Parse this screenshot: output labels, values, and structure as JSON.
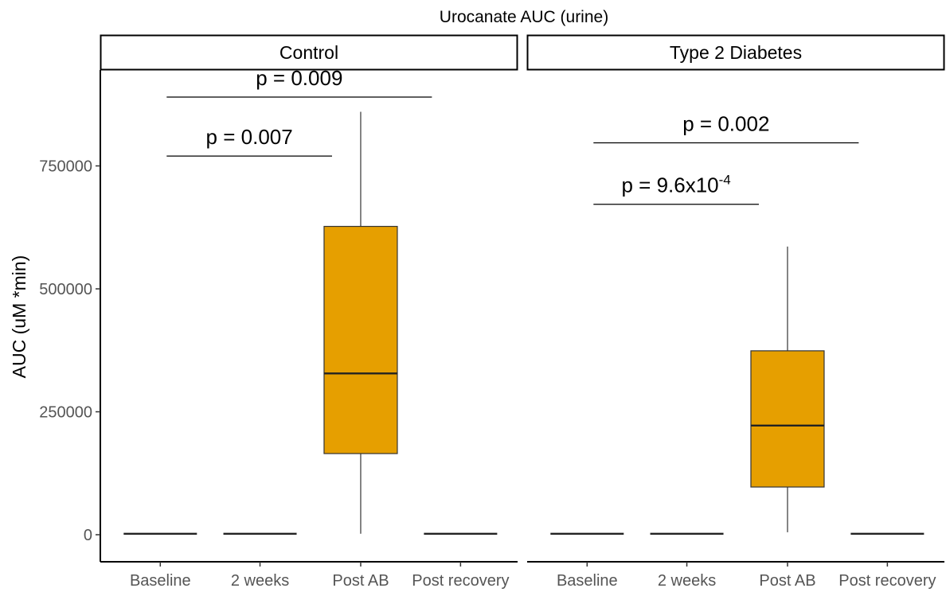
{
  "chart_data": {
    "type": "boxplot",
    "title": "Urocanate AUC (urine)",
    "ylabel": "AUC (uM *min)",
    "ylim": [
      -55000,
      945000
    ],
    "yticks": [
      0,
      250000,
      500000,
      750000
    ],
    "ytick_labels": [
      "0",
      "250000",
      "500000",
      "750000"
    ],
    "categories": [
      "Baseline",
      "2 weeks",
      "Post AB",
      "Post recovery"
    ],
    "box_fill": "#E69F00",
    "panels": [
      {
        "name": "Control",
        "boxes": [
          {
            "category": "Baseline",
            "min": 2000,
            "q1": 2000,
            "median": 2000,
            "q3": 2000,
            "max": 2000
          },
          {
            "category": "2 weeks",
            "min": 2000,
            "q1": 2000,
            "median": 2000,
            "q3": 2000,
            "max": 2000
          },
          {
            "category": "Post AB",
            "min": 2000,
            "q1": 165000,
            "median": 328000,
            "q3": 627000,
            "max": 860000
          },
          {
            "category": "Post recovery",
            "min": 2000,
            "q1": 2000,
            "median": 2000,
            "q3": 2000,
            "max": 2000
          }
        ],
        "comparisons": [
          {
            "from": "Baseline",
            "to": "Post AB",
            "y": 770000,
            "label": "p = 0.007"
          },
          {
            "from": "Baseline",
            "to": "Post recovery",
            "y": 890000,
            "label": "p = 0.009"
          }
        ]
      },
      {
        "name": "Type 2 Diabetes",
        "boxes": [
          {
            "category": "Baseline",
            "min": 2000,
            "q1": 2000,
            "median": 2000,
            "q3": 2000,
            "max": 2000
          },
          {
            "category": "2 weeks",
            "min": 2000,
            "q1": 2000,
            "median": 2000,
            "q3": 2000,
            "max": 2000
          },
          {
            "category": "Post AB",
            "min": 5000,
            "q1": 97000,
            "median": 222000,
            "q3": 374000,
            "max": 586000
          },
          {
            "category": "Post recovery",
            "min": 2000,
            "q1": 2000,
            "median": 2000,
            "q3": 2000,
            "max": 2000
          }
        ],
        "comparisons": [
          {
            "from": "Baseline",
            "to": "Post AB",
            "y": 672000,
            "label": "p = 9.6x10",
            "label_sup": "-4"
          },
          {
            "from": "Baseline",
            "to": "Post recovery",
            "y": 797000,
            "label": "p = 0.002"
          }
        ]
      }
    ],
    "grid": false,
    "legend": "none"
  }
}
